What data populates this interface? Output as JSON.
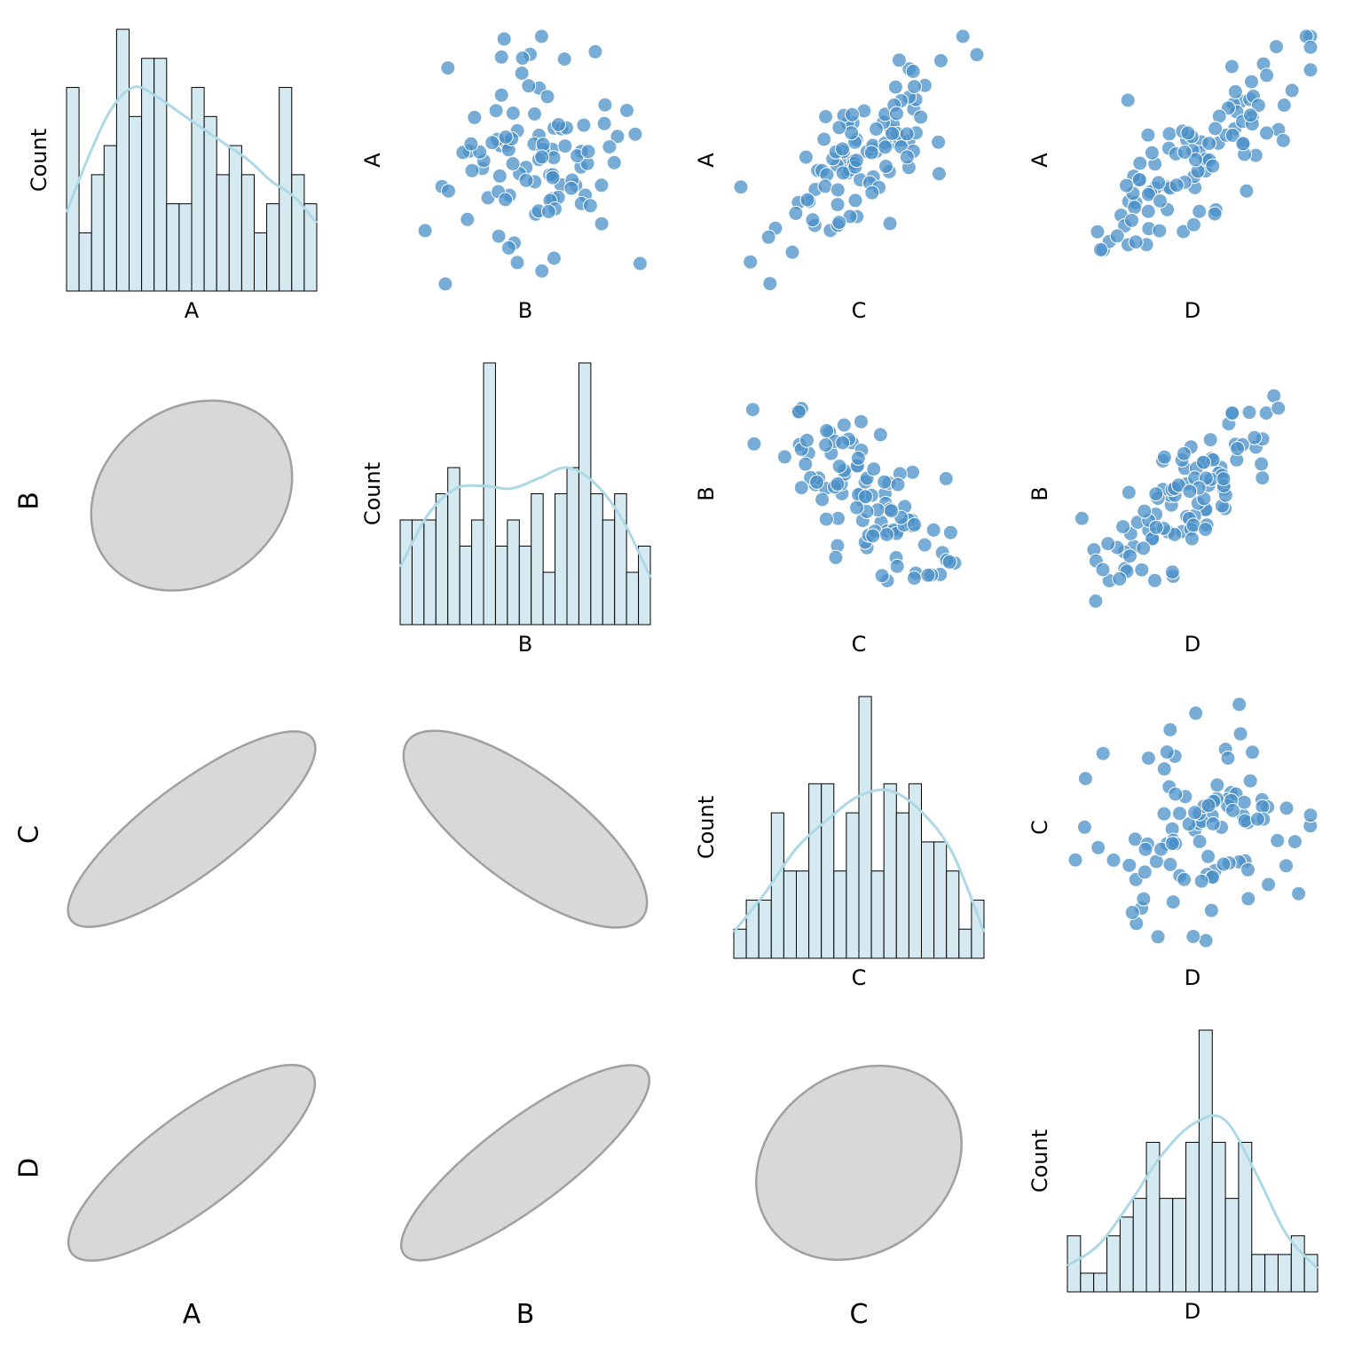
{
  "chart_data": {
    "type": "pairplot",
    "variables": [
      "A",
      "B",
      "C",
      "D"
    ],
    "count_label": "Count",
    "colors": {
      "hist_fill": "#d4eaf0",
      "hist_edge": "#000000",
      "kde_line": "#add8e6",
      "scatter_point": "#4a90c8",
      "ellipse_fill": "#d8d8d8",
      "ellipse_edge": "#a0a0a0"
    },
    "histograms": {
      "A": [
        7,
        2,
        4,
        5,
        9,
        6,
        8,
        8,
        3,
        3,
        7,
        6,
        4,
        5,
        4,
        2,
        3,
        7,
        4,
        3
      ],
      "B": [
        4,
        4,
        4,
        5,
        6,
        3,
        4,
        10,
        3,
        4,
        3,
        5,
        2,
        5,
        6,
        10,
        5,
        4,
        5,
        2,
        3
      ],
      "C": [
        1,
        2,
        2,
        5,
        3,
        3,
        6,
        6,
        3,
        5,
        9,
        3,
        6,
        5,
        6,
        4,
        4,
        3,
        1,
        2
      ],
      "D": [
        3,
        1,
        1,
        3,
        4,
        5,
        8,
        5,
        5,
        8,
        14,
        8,
        5,
        8,
        2,
        2,
        2,
        3,
        2
      ]
    },
    "kde": {
      "A": [
        0.3,
        0.52,
        0.7,
        0.78,
        0.74,
        0.68,
        0.62,
        0.56,
        0.5,
        0.42,
        0.36,
        0.26
      ],
      "B": [
        0.22,
        0.42,
        0.52,
        0.53,
        0.52,
        0.56,
        0.6,
        0.54,
        0.4,
        0.18
      ],
      "C": [
        0.1,
        0.25,
        0.42,
        0.53,
        0.62,
        0.64,
        0.56,
        0.4,
        0.1
      ],
      "D": [
        0.1,
        0.18,
        0.34,
        0.52,
        0.64,
        0.66,
        0.46,
        0.22,
        0.09
      ]
    },
    "correlations": {
      "A-B": 0.05,
      "A-C": 0.8,
      "A-D": 0.78,
      "B-C": -0.7,
      "B-D": 0.82,
      "C-D": 0.05
    },
    "ellipse_scale": {
      "A-B": 0.93,
      "A-C": 1.0,
      "A-D": 1.0,
      "B-C": 1.0,
      "B-D": 1.0,
      "C-D": 0.95
    },
    "n_points": 100
  }
}
